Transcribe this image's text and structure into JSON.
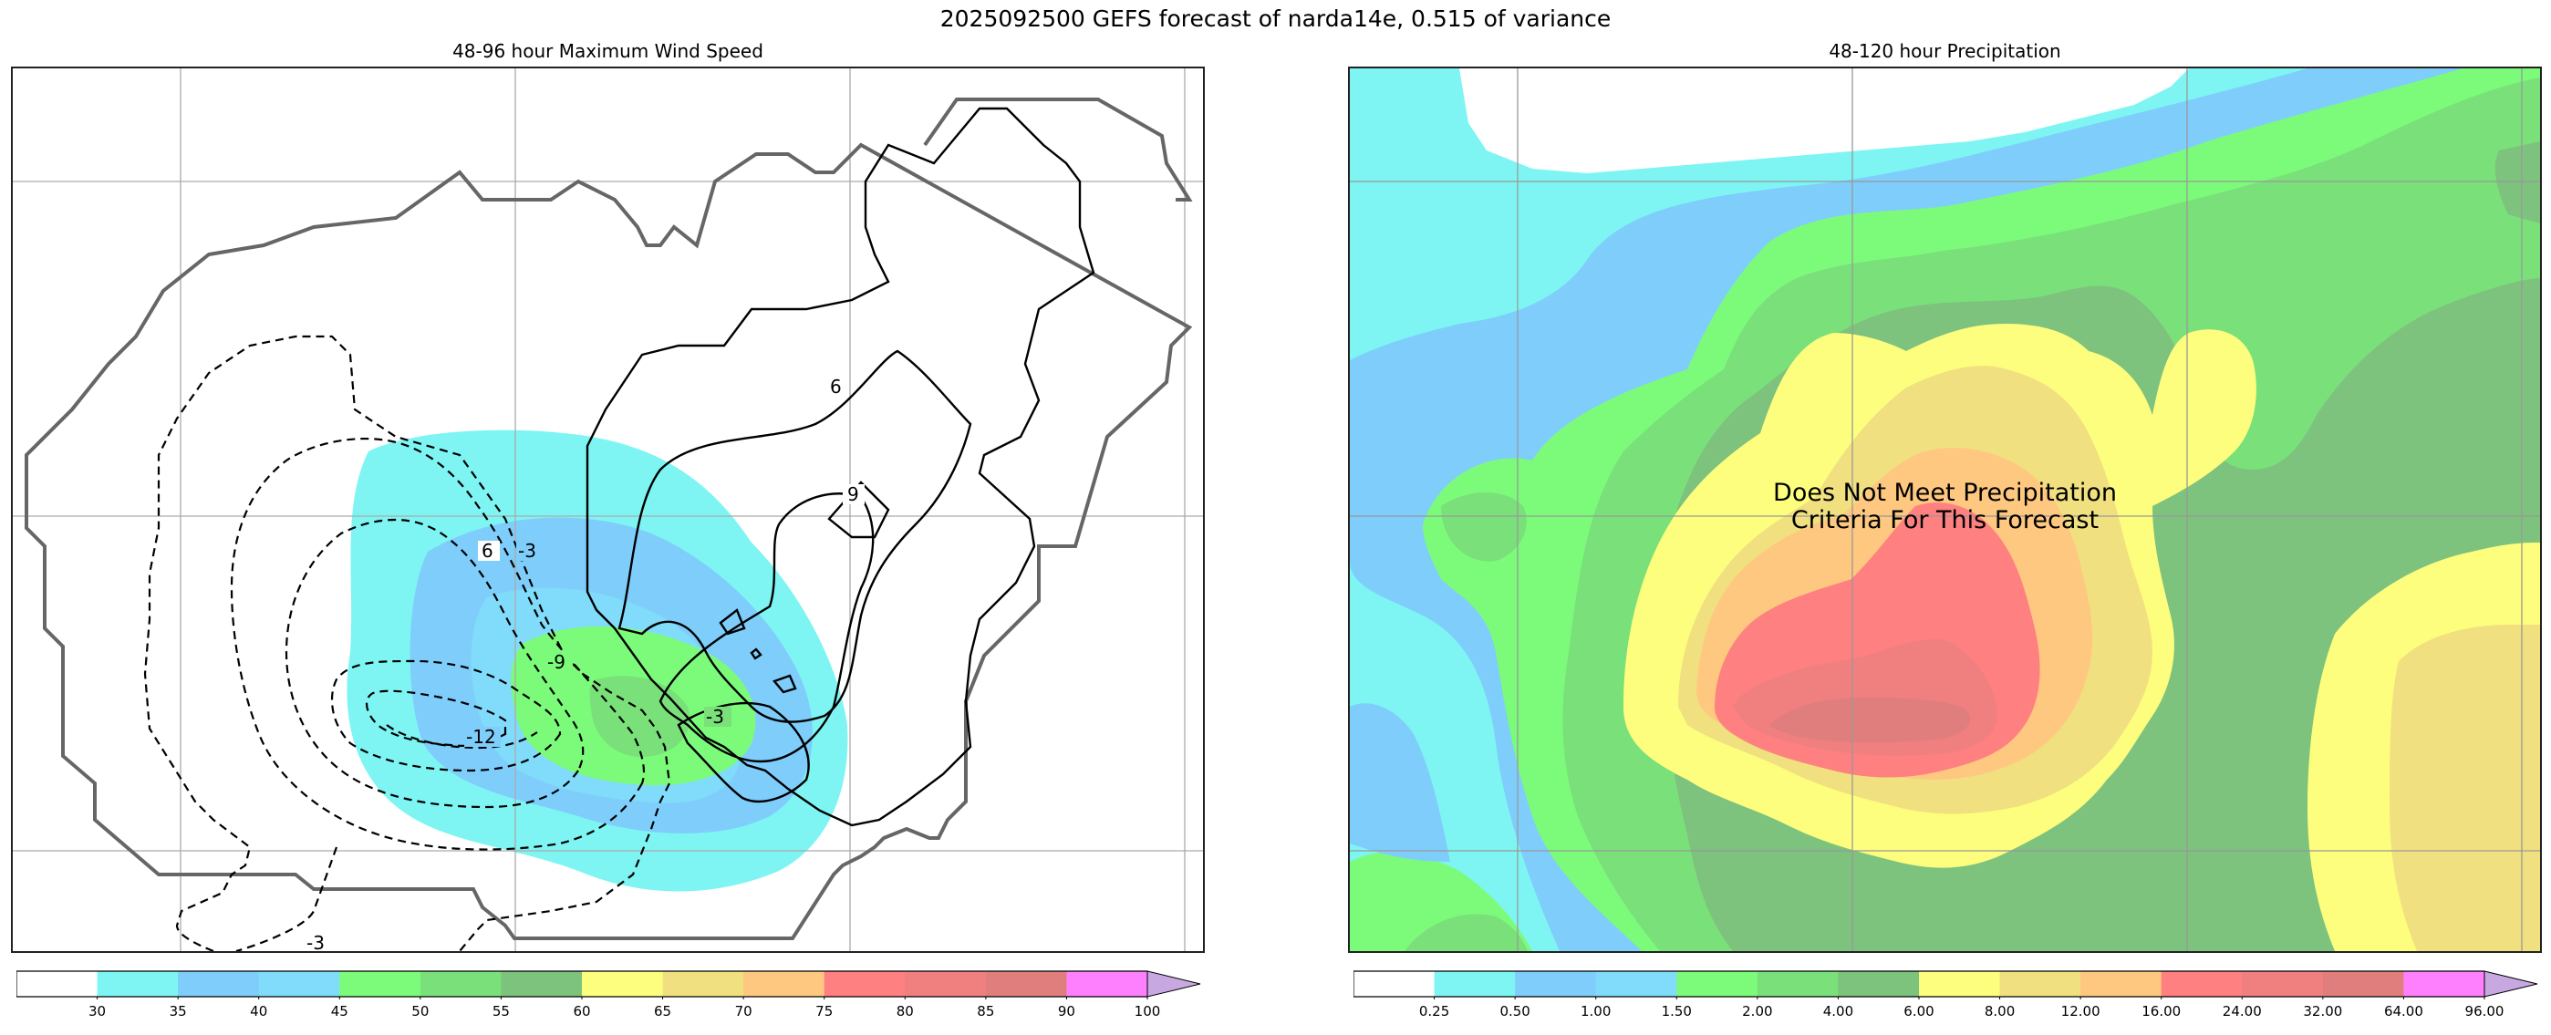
{
  "figure": {
    "title": "2025092500 GEFS forecast of narda14e, 0.515 of variance"
  },
  "wind_panel": {
    "title": "48-96 hour Maximum Wind Speed",
    "contour_labels": [
      "6",
      "9",
      "6",
      "-3",
      "-9",
      "-3",
      "-12",
      "-3"
    ]
  },
  "precip_panel": {
    "title": "48-120 hour Precipitation",
    "note_line1": "Does Not Meet Precipitation",
    "note_line2": "Criteria For This Forecast"
  },
  "wind_colorbar": {
    "labels": [
      "30",
      "35",
      "40",
      "45",
      "50",
      "55",
      "60",
      "65",
      "70",
      "75",
      "80",
      "85",
      "90",
      "100"
    ],
    "colors": [
      "#ffffff",
      "#7ef5f3",
      "#7fcdfb",
      "#80dcfa",
      "#7cfb7b",
      "#7ae07a",
      "#7dc27d",
      "#fefe7e",
      "#f0e080",
      "#fec880",
      "#fe8080",
      "#f08080",
      "#e07e7e",
      "#fe80fe",
      "#c8a8e0"
    ]
  },
  "precip_colorbar": {
    "labels": [
      "0.25",
      "0.50",
      "1.00",
      "1.50",
      "2.00",
      "4.00",
      "6.00",
      "8.00",
      "12.00",
      "16.00",
      "24.00",
      "32.00",
      "64.00",
      "96.00"
    ],
    "colors": [
      "#ffffff",
      "#7ef5f3",
      "#7fcdfb",
      "#80dcfa",
      "#7cfb7b",
      "#7ae07a",
      "#7dc27d",
      "#fefe7e",
      "#f0e080",
      "#fec880",
      "#fe8080",
      "#f08080",
      "#e07e7e",
      "#fe80fe",
      "#c8a8e0"
    ]
  }
}
